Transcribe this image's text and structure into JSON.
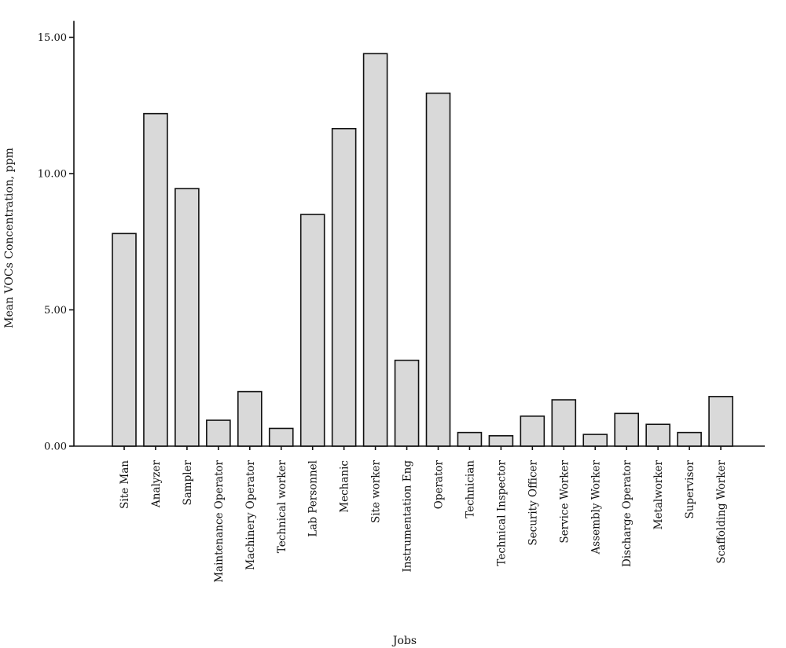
{
  "chart_data": {
    "type": "bar",
    "xlabel": "Jobs",
    "ylabel": "Mean VOCs Concentration, ppm",
    "ylim": [
      0,
      15.6
    ],
    "yticks": [
      0,
      5,
      10,
      15
    ],
    "ytick_labels": [
      "0.00",
      "5.00",
      "10.00",
      "15.00"
    ],
    "grid": false,
    "categories": [
      "Site Man",
      "Analyzer",
      "Sampler",
      "Maintenance Operator",
      "Machinery Operator",
      "Technical worker",
      "Lab Personnel",
      "Mechanic",
      "Site worker",
      "Instrumentation Eng",
      "Operator",
      "Technician",
      "Technical Inspector",
      "Security Officer",
      "Service Worker",
      "Assembly Worker",
      "Discharge Operator",
      "Metalworker",
      "Supervisor",
      "Scaffolding Worker"
    ],
    "values": [
      7.8,
      12.2,
      9.45,
      0.95,
      2.0,
      0.65,
      8.5,
      11.65,
      14.4,
      3.15,
      12.95,
      0.5,
      0.38,
      1.1,
      1.7,
      0.43,
      1.2,
      0.8,
      0.5,
      1.82
    ],
    "colors": {
      "bar_fill": "#d9d9d9",
      "bar_stroke": "#111111",
      "axis": "#111111"
    }
  }
}
